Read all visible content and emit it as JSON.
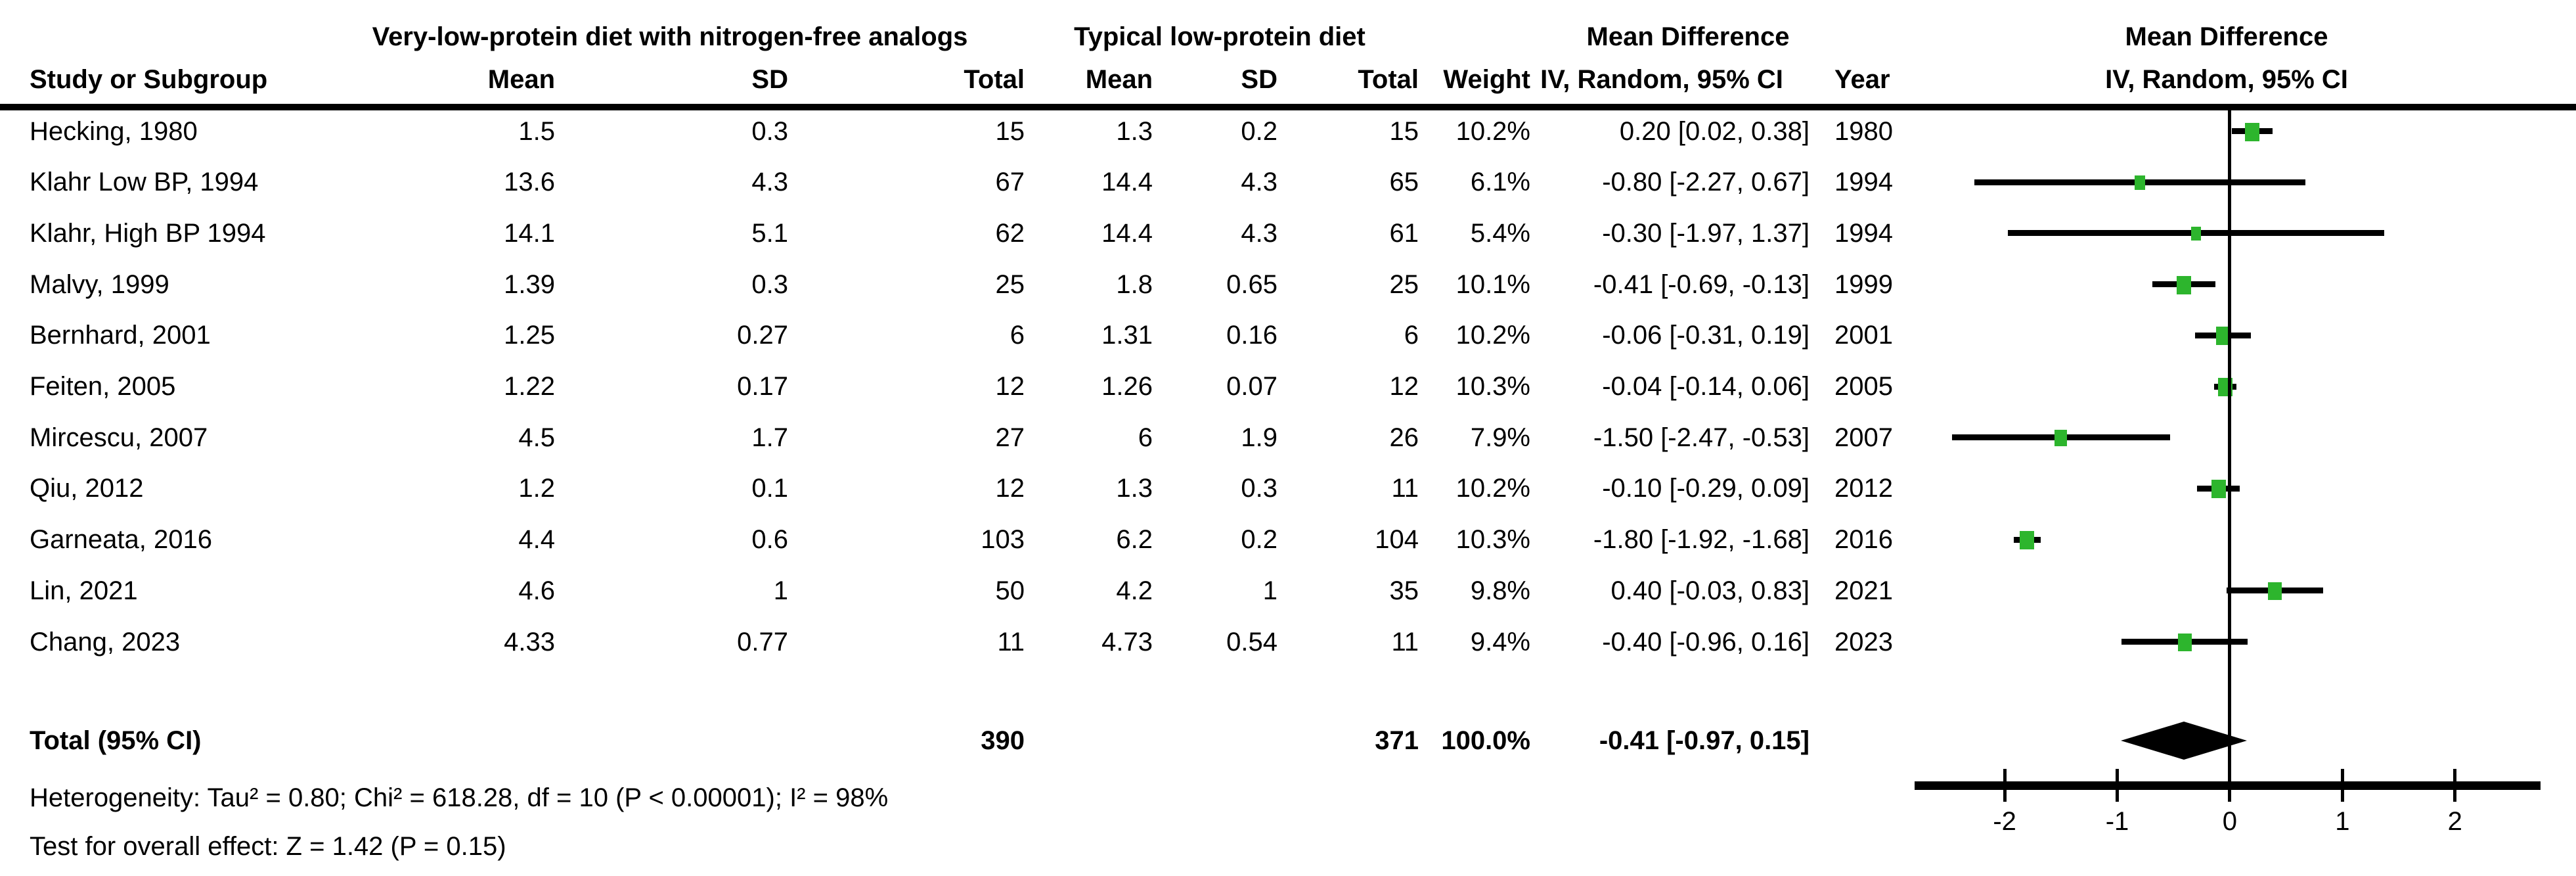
{
  "labels": {
    "group1": "Very-low-protein diet with nitrogen-free analogs",
    "group2": "Typical low-protein diet",
    "md_title": "Mean Difference",
    "iv_label": "IV, Random, 95% CI",
    "study": "Study or Subgroup",
    "mean": "Mean",
    "sd": "SD",
    "total": "Total",
    "weight": "Weight",
    "year": "Year"
  },
  "chart_data": {
    "type": "forest",
    "effect_model": "IV, Random, 95% CI",
    "xticks": [
      -2,
      -1,
      0,
      1,
      2
    ],
    "xrange": [
      -2.8,
      2.76
    ],
    "marker_color": "#2db52d",
    "studies": [
      {
        "name": "Hecking, 1980",
        "mean1": "1.5",
        "sd1": "0.3",
        "total1": "15",
        "mean2": "1.3",
        "sd2": "0.2",
        "total2": "15",
        "weight": "10.2%",
        "md": 0.2,
        "lo": 0.02,
        "hi": 0.38,
        "year": "1980"
      },
      {
        "name": "Klahr Low BP, 1994",
        "mean1": "13.6",
        "sd1": "4.3",
        "total1": "67",
        "mean2": "14.4",
        "sd2": "4.3",
        "total2": "65",
        "weight": "6.1%",
        "md": -0.8,
        "lo": -2.27,
        "hi": 0.67,
        "year": "1994"
      },
      {
        "name": "Klahr, High BP 1994",
        "mean1": "14.1",
        "sd1": "5.1",
        "total1": "62",
        "mean2": "14.4",
        "sd2": "4.3",
        "total2": "61",
        "weight": "5.4%",
        "md": -0.3,
        "lo": -1.97,
        "hi": 1.37,
        "year": "1994"
      },
      {
        "name": "Malvy, 1999",
        "mean1": "1.39",
        "sd1": "0.3",
        "total1": "25",
        "mean2": "1.8",
        "sd2": "0.65",
        "total2": "25",
        "weight": "10.1%",
        "md": -0.41,
        "lo": -0.69,
        "hi": -0.13,
        "year": "1999"
      },
      {
        "name": "Bernhard, 2001",
        "mean1": "1.25",
        "sd1": "0.27",
        "total1": "6",
        "mean2": "1.31",
        "sd2": "0.16",
        "total2": "6",
        "weight": "10.2%",
        "md": -0.06,
        "lo": -0.31,
        "hi": 0.19,
        "year": "2001"
      },
      {
        "name": "Feiten, 2005",
        "mean1": "1.22",
        "sd1": "0.17",
        "total1": "12",
        "mean2": "1.26",
        "sd2": "0.07",
        "total2": "12",
        "weight": "10.3%",
        "md": -0.04,
        "lo": -0.14,
        "hi": 0.06,
        "year": "2005"
      },
      {
        "name": "Mircescu, 2007",
        "mean1": "4.5",
        "sd1": "1.7",
        "total1": "27",
        "mean2": "6",
        "sd2": "1.9",
        "total2": "26",
        "weight": "7.9%",
        "md": -1.5,
        "lo": -2.47,
        "hi": -0.53,
        "year": "2007"
      },
      {
        "name": "Qiu, 2012",
        "mean1": "1.2",
        "sd1": "0.1",
        "total1": "12",
        "mean2": "1.3",
        "sd2": "0.3",
        "total2": "11",
        "weight": "10.2%",
        "md": -0.1,
        "lo": -0.29,
        "hi": 0.09,
        "year": "2012"
      },
      {
        "name": "Garneata, 2016",
        "mean1": "4.4",
        "sd1": "0.6",
        "total1": "103",
        "mean2": "6.2",
        "sd2": "0.2",
        "total2": "104",
        "weight": "10.3%",
        "md": -1.8,
        "lo": -1.92,
        "hi": -1.68,
        "year": "2016"
      },
      {
        "name": "Lin, 2021",
        "mean1": "4.6",
        "sd1": "1",
        "total1": "50",
        "mean2": "4.2",
        "sd2": "1",
        "total2": "35",
        "weight": "9.8%",
        "md": 0.4,
        "lo": -0.03,
        "hi": 0.83,
        "year": "2021"
      },
      {
        "name": "Chang, 2023",
        "mean1": "4.33",
        "sd1": "0.77",
        "total1": "11",
        "mean2": "4.73",
        "sd2": "0.54",
        "total2": "11",
        "weight": "9.4%",
        "md": -0.4,
        "lo": -0.96,
        "hi": 0.16,
        "year": "2023"
      }
    ],
    "total": {
      "label": "Total (95% CI)",
      "total1": "390",
      "total2": "371",
      "weight": "100.0%",
      "md": -0.41,
      "lo": -0.97,
      "hi": 0.15
    },
    "heterogeneity": "Heterogeneity: Tau² = 0.80; Chi² = 618.28, df = 10 (P < 0.00001); I² = 98%",
    "overall_test": "Test for overall effect: Z = 1.42 (P = 0.15)"
  }
}
